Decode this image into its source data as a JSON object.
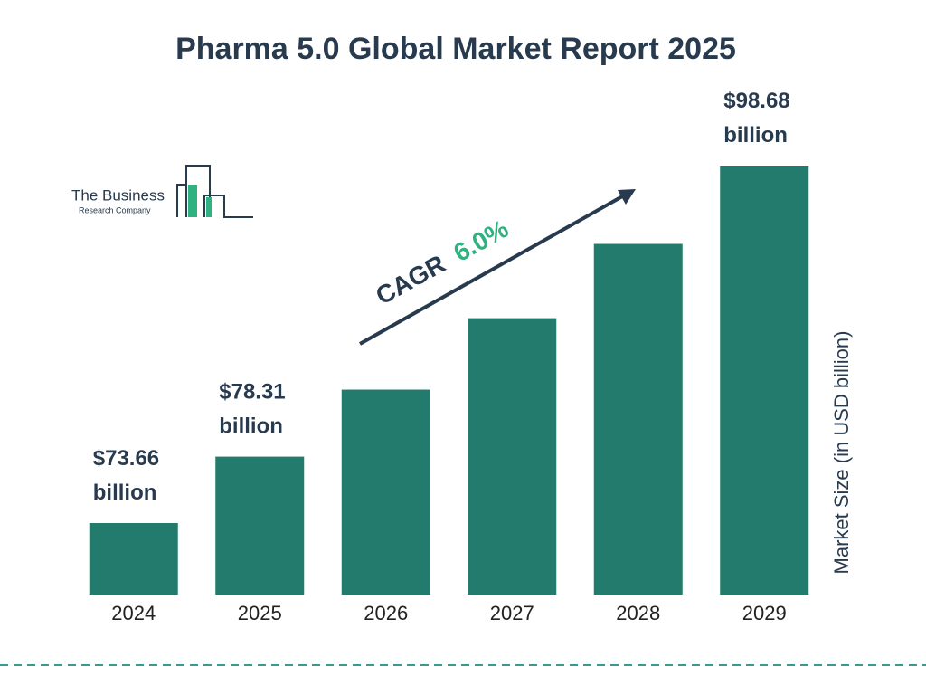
{
  "chart_data": {
    "type": "bar",
    "title": "Pharma 5.0 Global Market Report 2025",
    "categories": [
      "2024",
      "2025",
      "2026",
      "2027",
      "2028",
      "2029"
    ],
    "values": [
      73.66,
      78.31,
      83.0,
      88.0,
      93.2,
      98.68
    ],
    "value_labels": [
      "$73.66 billion",
      "$78.31 billion",
      null,
      null,
      null,
      "$98.68 billion"
    ],
    "color": "#227b6c",
    "y_label": "Market Size (in USD billion)",
    "annotation": {
      "text": "CAGR",
      "rate": "6.0%"
    },
    "logo": {
      "line1": "The Business",
      "line2": "Research Company"
    }
  }
}
